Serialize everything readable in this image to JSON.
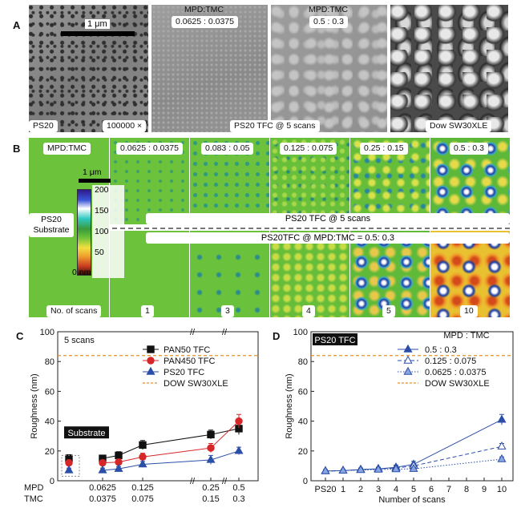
{
  "panelA": {
    "label": "A",
    "scale_bar": "1 μm",
    "ps20_label": "PS20",
    "magnification": "100000 ×",
    "col2_title1": "MPD:TMC",
    "col2_title2": "0.0625 : 0.0375",
    "col3_title1": "MPD:TMC",
    "col3_title2": "0.5 : 0.3",
    "center_caption": "PS20 TFC @ 5 scans",
    "dow_caption": "Dow SW30XLE"
  },
  "panelB": {
    "label": "B",
    "mpd_tmc": "MPD:TMC",
    "ratios": [
      "0.0625 : 0.0375",
      "0.083 : 0.05",
      "0.125 : 0.075",
      "0.25 : 0.15",
      "0.5 : 0.3"
    ],
    "scale_bar": "1 μm",
    "substrate_line1": "PS20",
    "substrate_line2": "Substrate",
    "banner_top": "PS20 TFC @ 5 scans",
    "banner_bottom": "PS20TFC @ MPD:TMC = 0.5: 0.3",
    "colorbar_ticks": [
      "200",
      "150",
      "100",
      "50",
      "0 nm"
    ],
    "scans_label": "No. of scans",
    "scans": [
      "1",
      "3",
      "4",
      "5",
      "10"
    ]
  },
  "chartC": {
    "label": "C",
    "annotation": "5 scans",
    "substrate_tag": "Substrate",
    "ylabel": "Roughness (nm)",
    "yticks": [
      "0",
      "20",
      "40",
      "60",
      "80",
      "100"
    ],
    "row1_label": "MPD",
    "row2_label": "TMC",
    "mpd_ticks": [
      "0.0625",
      "0.125",
      "0.25",
      "0.5"
    ],
    "tmc_ticks": [
      "0.0375",
      "0.075",
      "0.15",
      "0.3"
    ],
    "legend": [
      "PAN50 TFC",
      "PAN450 TFC",
      "PS20 TFC",
      "DOW SW30XLE"
    ]
  },
  "chartD": {
    "label": "D",
    "tag": "PS20 TFC",
    "legend_title": "MPD : TMC",
    "legend": [
      "0.5 : 0.3",
      "0.125 : 0.075",
      "0.0625 : 0.0375",
      "DOW SW30XLE"
    ],
    "ylabel": "Roughness (nm)",
    "xlabel": "Number of scans",
    "xticks": [
      "PS20",
      "1",
      "2",
      "3",
      "4",
      "5",
      "6",
      "7",
      "8",
      "9",
      "10"
    ],
    "yticks": [
      "0",
      "20",
      "40",
      "60",
      "80",
      "100"
    ]
  },
  "chart_data": [
    {
      "type": "scatter",
      "ylabel": "Roughness (nm)",
      "ylim": [
        0,
        100
      ],
      "categories": [
        "substrate",
        "0.0625 : 0.0375",
        "0.083 : 0.05",
        "0.125 : 0.075",
        "0.25 : 0.15",
        "0.5 : 0.3"
      ],
      "series": [
        {
          "name": "PAN50 TFC",
          "color": "#111111",
          "values": [
            15,
            15,
            17,
            24,
            31,
            35
          ],
          "errors": [
            2.5,
            2,
            2.5,
            3,
            3,
            4
          ]
        },
        {
          "name": "PAN450 TFC",
          "color": "#d62728",
          "values": [
            12,
            12,
            12.5,
            16,
            22,
            40
          ],
          "errors": [
            2,
            2,
            2,
            2.5,
            3,
            4.5
          ]
        },
        {
          "name": "PS20 TFC",
          "color": "#2b4ea8",
          "values": [
            7,
            7,
            8,
            11,
            14,
            20
          ],
          "errors": [
            1.5,
            1.5,
            1.5,
            2,
            3,
            2.5
          ]
        }
      ],
      "reference": {
        "name": "DOW SW30XLE",
        "value": 84,
        "color": "#e8912a"
      },
      "legend_position": "top-right",
      "grid": false
    },
    {
      "type": "line",
      "xlabel": "Number of scans",
      "ylabel": "Roughness (nm)",
      "ylim": [
        0,
        100
      ],
      "xlim": [
        0,
        10
      ],
      "x": [
        0,
        1,
        2,
        3,
        4,
        5,
        10
      ],
      "series": [
        {
          "name": "0.5 : 0.3",
          "color": "#2b4ea8",
          "style": "solid",
          "marker": "filled",
          "values": [
            6.5,
            6.8,
            7.5,
            8,
            9,
            11,
            41
          ],
          "errors": [
            1,
            1,
            1,
            1,
            1.5,
            2,
            3.5
          ]
        },
        {
          "name": "0.125 : 0.075",
          "color": "#2b4ea8",
          "style": "dashed",
          "marker": "open",
          "values": [
            6.5,
            6.8,
            7.5,
            8,
            8.5,
            10,
            23
          ],
          "errors": [
            1,
            1,
            1,
            1,
            1,
            1.5,
            2
          ]
        },
        {
          "name": "0.0625 : 0.0375",
          "color": "#2b4ea8",
          "style": "dotted",
          "marker": "light",
          "values": [
            6.5,
            6.8,
            7.2,
            7.5,
            7.8,
            8,
            14.5
          ],
          "errors": [
            1,
            1,
            1,
            1,
            1,
            1,
            1.5
          ]
        }
      ],
      "reference": {
        "name": "DOW SW30XLE",
        "value": 84,
        "color": "#e8912a"
      },
      "legend_position": "top-right",
      "grid": false
    }
  ]
}
